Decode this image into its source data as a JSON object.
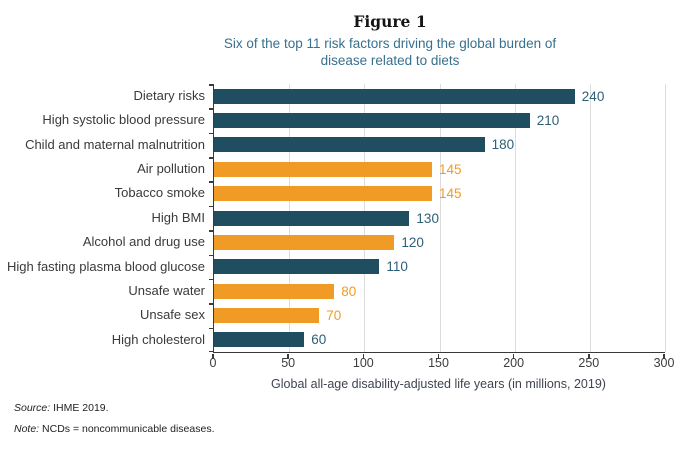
{
  "chart_data": {
    "type": "bar",
    "orientation": "horizontal",
    "figure_label": "Figure 1",
    "title": "Six of the top 11 risk factors driving the global burden of disease related to diets",
    "title_lines": [
      "Six of the top 11 risk factors driving the global burden of",
      "disease related to diets"
    ],
    "categories": [
      "Dietary risks",
      "High systolic blood pressure",
      "Child and maternal malnutrition",
      "Air pollution",
      "Tobacco smoke",
      "High BMI",
      "Alcohol and drug use",
      "High fasting plasma blood glucose",
      "Unsafe water",
      "Unsafe sex",
      "High cholesterol"
    ],
    "values": [
      240,
      210,
      180,
      145,
      145,
      130,
      120,
      110,
      80,
      70,
      60
    ],
    "bar_colors": [
      "teal",
      "teal",
      "teal",
      "orange",
      "orange",
      "teal",
      "orange",
      "teal",
      "orange",
      "orange",
      "teal"
    ],
    "value_label_colors": [
      "teal",
      "teal",
      "teal",
      "orange",
      "orange",
      "teal",
      "teal",
      "teal",
      "orange",
      "orange",
      "teal"
    ],
    "xlabel": "Global all-age disability-adjusted life years (in millions, 2019)",
    "x_ticks": [
      0,
      50,
      100,
      150,
      200,
      250,
      300
    ],
    "xlim": [
      0,
      300
    ],
    "grid": "vertical gridlines every 50 units",
    "legend": "none",
    "colors": {
      "teal": "#1f4e61",
      "orange": "#ef9b25",
      "value_teal": "#2e5e77",
      "subtitle": "#38708e",
      "gridline": "#dcdcdc",
      "axis": "#3a3a3a"
    }
  },
  "footer": {
    "source_label": "Source:",
    "source_text": " IHME 2019.",
    "note_label": "Note:",
    "note_text": " NCDs = noncommunicable diseases."
  }
}
